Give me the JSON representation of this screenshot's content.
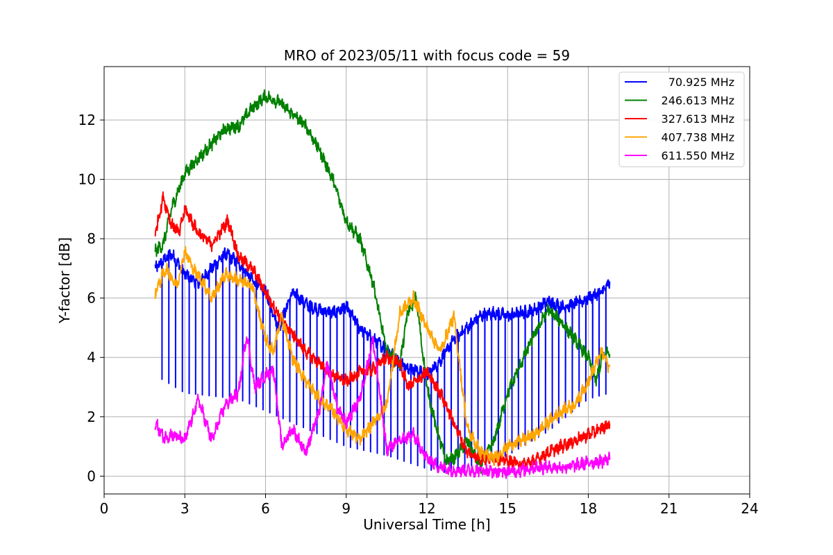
{
  "chart_data": {
    "type": "line",
    "title": "MRO of 2023/05/11 with focus code = 59",
    "xlabel": "Universal Time [h]",
    "ylabel": "Y-factor [dB]",
    "xlim": [
      0,
      24
    ],
    "ylim": [
      -0.6,
      13.8
    ],
    "xticks": [
      0,
      3,
      6,
      9,
      12,
      15,
      18,
      21,
      24
    ],
    "yticks": [
      0,
      2,
      4,
      6,
      8,
      10,
      12
    ],
    "grid": true,
    "legend_position": "top-right",
    "series": [
      {
        "name": "70.925 MHz",
        "color": "#0000ff",
        "x": [
          1.9,
          2.5,
          3.0,
          3.5,
          4.0,
          4.5,
          5.0,
          5.5,
          6.0,
          6.5,
          7.0,
          7.5,
          8.0,
          8.5,
          9.0,
          9.5,
          10.0,
          10.5,
          11.0,
          11.5,
          12.0,
          12.5,
          13.0,
          13.5,
          14.0,
          14.5,
          15.0,
          15.5,
          16.0,
          16.5,
          17.0,
          17.5,
          18.0,
          18.5,
          18.8
        ],
        "y": [
          7.0,
          7.5,
          6.8,
          6.5,
          7.0,
          7.5,
          7.2,
          6.6,
          6.2,
          5.0,
          6.2,
          5.8,
          5.6,
          5.5,
          5.7,
          5.0,
          4.6,
          4.3,
          3.8,
          3.6,
          3.4,
          3.9,
          4.6,
          5.0,
          5.4,
          5.5,
          5.4,
          5.5,
          5.6,
          5.9,
          5.7,
          5.8,
          6.0,
          6.2,
          6.5
        ],
        "dropouts": {
          "every_h": 0.25,
          "floor": [
            {
              "x": 1.9,
              "y": 3.4
            },
            {
              "x": 3.0,
              "y": 2.8
            },
            {
              "x": 5.0,
              "y": 2.6
            },
            {
              "x": 7.0,
              "y": 1.8
            },
            {
              "x": 9.0,
              "y": 1.0
            },
            {
              "x": 10.5,
              "y": 0.7
            },
            {
              "x": 11.5,
              "y": 0.4
            },
            {
              "x": 12.5,
              "y": 0.1
            },
            {
              "x": 13.5,
              "y": 0.3
            },
            {
              "x": 15.0,
              "y": 0.7
            },
            {
              "x": 16.5,
              "y": 1.5
            },
            {
              "x": 18.0,
              "y": 2.6
            },
            {
              "x": 18.8,
              "y": 2.8
            }
          ]
        }
      },
      {
        "name": "246.613 MHz",
        "color": "#008000",
        "x": [
          1.9,
          2.2,
          2.5,
          3.0,
          3.5,
          4.0,
          4.5,
          5.0,
          5.5,
          6.0,
          6.5,
          7.0,
          7.5,
          8.0,
          8.5,
          9.0,
          9.5,
          10.0,
          10.5,
          11.0,
          11.3,
          11.6,
          12.0,
          12.3,
          12.7,
          13.0,
          13.5,
          14.0,
          14.5,
          15.0,
          15.5,
          16.0,
          16.5,
          17.0,
          17.5,
          18.0,
          18.3,
          18.5,
          18.8
        ],
        "y": [
          7.6,
          7.8,
          9.0,
          10.2,
          10.7,
          11.2,
          11.7,
          11.8,
          12.4,
          12.8,
          12.6,
          12.2,
          11.8,
          11.0,
          10.0,
          8.6,
          8.0,
          6.5,
          4.2,
          3.8,
          5.6,
          6.0,
          3.0,
          1.8,
          0.5,
          0.6,
          1.2,
          0.3,
          1.2,
          2.8,
          3.8,
          4.8,
          5.6,
          5.2,
          4.6,
          4.0,
          3.2,
          4.0,
          4.2
        ]
      },
      {
        "name": "327.613 MHz",
        "color": "#ff0000",
        "x": [
          1.9,
          2.2,
          2.5,
          2.8,
          3.0,
          3.5,
          4.0,
          4.6,
          5.0,
          5.5,
          6.0,
          6.5,
          7.0,
          7.5,
          8.0,
          8.5,
          9.0,
          9.5,
          10.0,
          10.5,
          11.0,
          11.3,
          11.6,
          12.0,
          12.5,
          13.0,
          13.5,
          14.0,
          14.5,
          15.0,
          15.5,
          16.0,
          16.5,
          17.0,
          17.5,
          18.0,
          18.5,
          18.8
        ],
        "y": [
          8.2,
          9.4,
          8.5,
          8.2,
          9.0,
          8.2,
          7.8,
          8.6,
          7.4,
          7.0,
          6.2,
          5.4,
          4.8,
          4.2,
          3.8,
          3.4,
          3.2,
          3.5,
          3.6,
          4.0,
          3.8,
          3.0,
          3.2,
          3.5,
          2.8,
          1.8,
          0.8,
          0.6,
          0.6,
          0.5,
          0.4,
          0.5,
          0.8,
          1.0,
          1.2,
          1.4,
          1.6,
          1.8
        ]
      },
      {
        "name": "407.738 MHz",
        "color": "#ffa500",
        "x": [
          1.9,
          2.3,
          2.7,
          3.0,
          3.3,
          3.7,
          4.0,
          4.5,
          5.0,
          5.5,
          6.0,
          6.3,
          6.6,
          7.0,
          7.5,
          8.0,
          8.5,
          9.0,
          9.5,
          10.0,
          10.5,
          11.0,
          11.5,
          12.0,
          12.5,
          13.0,
          13.5,
          14.0,
          14.5,
          15.0,
          15.5,
          16.0,
          16.5,
          17.0,
          17.5,
          18.0,
          18.5,
          18.8
        ],
        "y": [
          6.2,
          7.0,
          6.4,
          7.6,
          7.0,
          6.5,
          6.0,
          6.8,
          6.6,
          6.4,
          4.6,
          4.2,
          5.4,
          4.0,
          3.2,
          2.6,
          2.2,
          1.6,
          1.2,
          1.8,
          2.4,
          5.5,
          6.0,
          5.0,
          4.2,
          5.4,
          1.6,
          0.8,
          0.6,
          1.0,
          1.2,
          1.4,
          1.8,
          2.2,
          2.4,
          3.2,
          4.2,
          3.6
        ]
      },
      {
        "name": "611.550 MHz",
        "color": "#ff00ff",
        "x": [
          1.9,
          2.2,
          2.5,
          3.0,
          3.5,
          4.0,
          4.5,
          5.0,
          5.3,
          5.6,
          6.0,
          6.3,
          6.6,
          7.0,
          7.5,
          8.0,
          8.3,
          8.7,
          9.0,
          9.5,
          10.0,
          10.3,
          10.5,
          11.0,
          11.5,
          12.0,
          12.5,
          13.0,
          13.5,
          14.0,
          14.5,
          15.0,
          15.5,
          16.0,
          16.5,
          17.0,
          17.5,
          18.0,
          18.5,
          18.8
        ],
        "y": [
          1.8,
          1.3,
          1.4,
          1.2,
          2.6,
          1.2,
          2.4,
          2.8,
          4.8,
          3.0,
          3.4,
          3.6,
          1.0,
          1.6,
          0.8,
          2.2,
          3.8,
          2.2,
          1.8,
          2.6,
          4.6,
          2.4,
          0.9,
          1.2,
          1.4,
          0.6,
          0.3,
          0.2,
          0.2,
          0.2,
          0.15,
          0.15,
          0.2,
          0.3,
          0.3,
          0.3,
          0.35,
          0.45,
          0.5,
          0.6
        ]
      }
    ]
  }
}
